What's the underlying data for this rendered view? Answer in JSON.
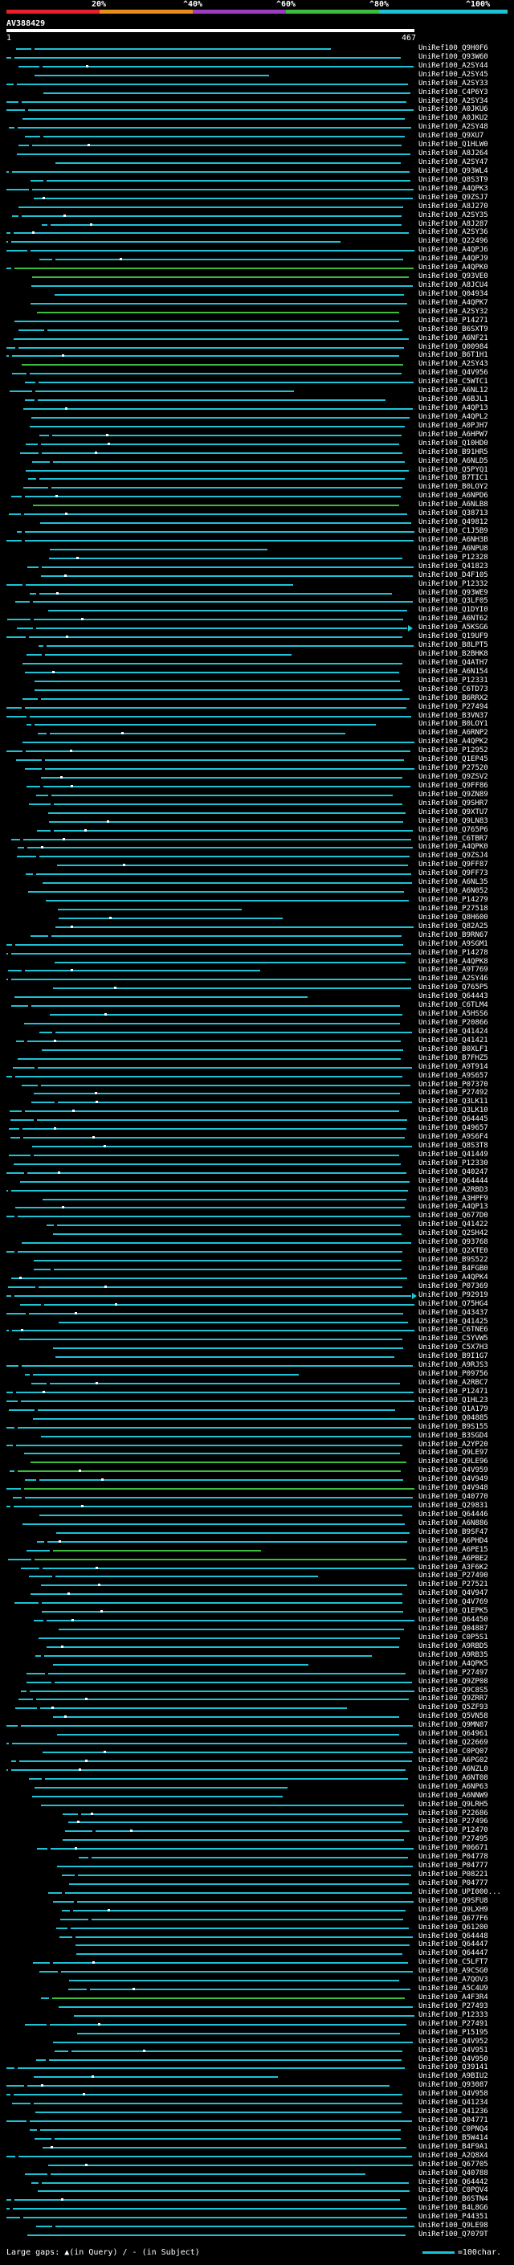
{
  "legend": {
    "ticks": [
      "20%",
      "^40%",
      "^60%",
      "^80%",
      "^100%"
    ],
    "colors": [
      "#e8202a",
      "#e88c1a",
      "#9b3dbd",
      "#3dbd3d",
      "#1ec2d6"
    ]
  },
  "query": {
    "name": "AV388429",
    "start": "1",
    "end": "467"
  },
  "footer": {
    "large_gaps": "Large gaps: ▲(in Query) / - (in Subject)",
    "scale": "=100char."
  },
  "hits": [
    "UniRef100_Q9H0F6",
    "UniRef100_Q93W60",
    "UniRef100_A2SY44",
    "UniRef100_A2SY45",
    "UniRef100_A2SY33",
    "UniRef100_C4P6Y3",
    "UniRef100_A2SY34",
    "UniRef100_A0JKU6",
    "UniRef100_A0JKU2",
    "UniRef100_A2SY48",
    "UniRef100_Q9XU7",
    "UniRef100_Q1HLW0",
    "UniRef100_A8J264",
    "UniRef100_A2SY47",
    "UniRef100_Q93WL4",
    "UniRef100_Q8S3T9",
    "UniRef100_A4QPK3",
    "UniRef100_Q9ZSJ7",
    "UniRef100_A8J270",
    "UniRef100_A2SY35",
    "UniRef100_A8J287",
    "UniRef100_A2SY36",
    "UniRef100_Q22496",
    "UniRef100_A4QPJ6",
    "UniRef100_A4QPJ9",
    "UniRef100_A4QPK0",
    "UniRef100_Q93VE0",
    "UniRef100_A8JCU4",
    "UniRef100_Q04934",
    "UniRef100_A4QPK7",
    "UniRef100_A2SY32",
    "UniRef100_P14271",
    "UniRef100_B6SXT9",
    "UniRef100_A6NF21",
    "UniRef100_Q00984",
    "UniRef100_B6T1H1",
    "UniRef100_A2SY43",
    "UniRef100_Q4V956",
    "UniRef100_C5WTC1",
    "UniRef100_A6NL12",
    "UniRef100_A6BJL1",
    "UniRef100_A4QP13",
    "UniRef100_A4QPL2",
    "UniRef100_A0PJH7",
    "UniRef100_A6HPW7",
    "UniRef100_Q10HD0",
    "UniRef100_B91HR5",
    "UniRef100_A6NLD5",
    "UniRef100_Q5PYQ1",
    "UniRef100_B7TIC1",
    "UniRef100_B0LOY2",
    "UniRef100_A6NPD6",
    "UniRef100_A6NLB8",
    "UniRef100_Q38713",
    "UniRef100_Q49812",
    "UniRef100_C1J5B9",
    "UniRef100_A6NH3B",
    "UniRef100_A6NPU8",
    "UniRef100_P12328",
    "UniRef100_Q41823",
    "UniRef100_D4F105",
    "UniRef100_P12332",
    "UniRef100_Q93WE9",
    "UniRef100_Q3LF05",
    "UniRef100_Q1DYI0",
    "UniRef100_A6NT62",
    "UniRef100_A5KSG6",
    "UniRef100_Q19UF9",
    "UniRef100_B8LPT5",
    "UniRef100_B2BHK8",
    "UniRef100_Q4ATH7",
    "UniRef100_A6N154",
    "UniRef100_P12331",
    "UniRef100_C6TD73",
    "UniRef100_B6RRX2",
    "UniRef100_P27494",
    "UniRef100_B3VN37",
    "UniRef100_B0LOY1",
    "UniRef100_A6RNP2",
    "UniRef100_A4QPK2",
    "UniRef100_P12952",
    "UniRef100_Q1EP45",
    "UniRef100_P27520",
    "UniRef100_Q9ZSV2",
    "UniRef100_Q9FF86",
    "UniRef100_Q9ZN89",
    "UniRef100_Q9SHR7",
    "UniRef100_Q9XTU7",
    "UniRef100_Q9LN83",
    "UniRef100_Q765P6",
    "UniRef100_C6TBR7",
    "UniRef100_A4QPK0",
    "UniRef100_Q9ZSJ4",
    "UniRef100_Q9FF87",
    "UniRef100_Q9FF73",
    "UniRef100_A6NL35",
    "UniRef100_A6N052",
    "UniRef100_P14279",
    "UniRef100_P27518",
    "UniRef100_Q8H600",
    "UniRef100_Q82A25",
    "UniRef100_B9RN67",
    "UniRef100_A9SGM1",
    "UniRef100_P14278",
    "UniRef100_A4QPK8",
    "UniRef100_A9T769",
    "UniRef100_A2SY46",
    "UniRef100_Q765P5",
    "UniRef100_Q64443",
    "UniRef100_C6TLM4",
    "UniRef100_A5HSS6",
    "UniRef100_P20866",
    "UniRef100_Q41424",
    "UniRef100_Q41421",
    "UniRef100_B0XLF1",
    "UniRef100_B7FHZ5",
    "UniRef100_A9T914",
    "UniRef100_A9S657",
    "UniRef100_P07370",
    "UniRef100_P27492",
    "UniRef100_Q3LK11",
    "UniRef100_Q3LK10",
    "UniRef100_Q64445",
    "UniRef100_Q49657",
    "UniRef100_A9S6F4",
    "UniRef100_Q8S3T8",
    "UniRef100_Q41449",
    "UniRef100_P12330",
    "UniRef100_Q40247",
    "UniRef100_Q64444",
    "UniRef100_A2RBD3",
    "UniRef100_A3HPF9",
    "UniRef100_A4QP13",
    "UniRef100_Q677D0",
    "UniRef100_Q41422",
    "UniRef100_Q2SH42",
    "UniRef100_Q93768",
    "UniRef100_Q2XTE0",
    "UniRef100_B9S522",
    "UniRef100_B4FGB0",
    "UniRef100_A4QPK4",
    "UniRef100_P07369",
    "UniRef100_P92919",
    "UniRef100_Q75HG4",
    "UniRef100_Q43437",
    "UniRef100_Q41425",
    "UniRef100_C6TNE6",
    "UniRef100_C5YVW5",
    "UniRef100_C5X7H3",
    "UniRef100_B9I1G7",
    "UniRef100_A9RJS3",
    "UniRef100_P09756",
    "UniRef100_A2RBC7",
    "UniRef100_P12471",
    "UniRef100_Q1HL23",
    "UniRef100_Q1A179",
    "UniRef100_Q04885",
    "UniRef100_B9S155",
    "UniRef100_B3SGD4",
    "UniRef100_A2YP20",
    "UniRef100_Q9LE97",
    "UniRef100_Q9LE96",
    "UniRef100_Q4V959",
    "UniRef100_Q4V949",
    "UniRef100_Q4V948",
    "UniRef100_Q40770",
    "UniRef100_Q29831",
    "UniRef100_Q64446",
    "UniRef100_A6N886",
    "UniRef100_B9SF47",
    "UniRef100_A6PHD4",
    "UniRef100_A6PE15",
    "UniRef100_A6PBE2",
    "UniRef100_A3F6K2",
    "UniRef100_P27490",
    "UniRef100_P27521",
    "UniRef100_Q4V947",
    "UniRef100_Q4V769",
    "UniRef100_Q1EPK5",
    "UniRef100_Q64450",
    "UniRef100_Q04887",
    "UniRef100_C0P5S1",
    "UniRef100_A9RBD5",
    "UniRef100_A9RB35",
    "UniRef100_A4QPK5",
    "UniRef100_P27497",
    "UniRef100_Q9ZP08",
    "UniRef100_Q9C8S5",
    "UniRef100_Q9ZRR7",
    "UniRef100_Q5ZF93",
    "UniRef100_Q5VN58",
    "UniRef100_Q9MN87",
    "UniRef100_Q64961",
    "UniRef100_Q22669",
    "UniRef100_C0PQ07",
    "UniRef100_A6PG02",
    "UniRef100_A6NZL0",
    "UniRef100_A6NT08",
    "UniRef100_A6NP63",
    "UniRef100_A6NNW9",
    "UniRef100_Q9LRH5",
    "UniRef100_P22686",
    "UniRef100_P27496",
    "UniRef100_P12470",
    "UniRef100_P27495",
    "UniRef100_P06671",
    "UniRef100_P04778",
    "UniRef100_P04777",
    "UniRef100_P08221",
    "UniRef100_P04777",
    "UniRef100_UPI000...",
    "UniRef100_Q9SFU8",
    "UniRef100_Q9LXH9",
    "UniRef100_Q677F6",
    "UniRef100_Q61200",
    "UniRef100_Q64448",
    "UniRef100_Q64447",
    "UniRef100_Q64447",
    "UniRef100_C5LFT7",
    "UniRef100_A9CSG0",
    "UniRef100_A7QOV3",
    "UniRef100_A5C4U9",
    "UniRef100_A4F3R4",
    "UniRef100_P27493",
    "UniRef100_P12333",
    "UniRef100_P27491",
    "UniRef100_P15195",
    "UniRef100_Q4V952",
    "UniRef100_Q4V951",
    "UniRef100_Q4V950",
    "UniRef100_Q39141",
    "UniRef100_A9BIU2",
    "UniRef100_Q93087",
    "UniRef100_Q4V958",
    "UniRef100_Q41234",
    "UniRef100_Q41236",
    "UniRef100_Q04771",
    "UniRef100_C0PNQ4",
    "UniRef100_B5W414",
    "UniRef100_B4F9A1",
    "UniRef100_A2Q8X4",
    "UniRef100_Q67705",
    "UniRef100_Q40788",
    "UniRef100_Q64442",
    "UniRef100_C0PQV4",
    "UniRef100_B6STN4",
    "UniRef100_B4L8G6",
    "UniRef100_P44351",
    "UniRef100_Q9LE98",
    "UniRef100_Q7079T"
  ]
}
